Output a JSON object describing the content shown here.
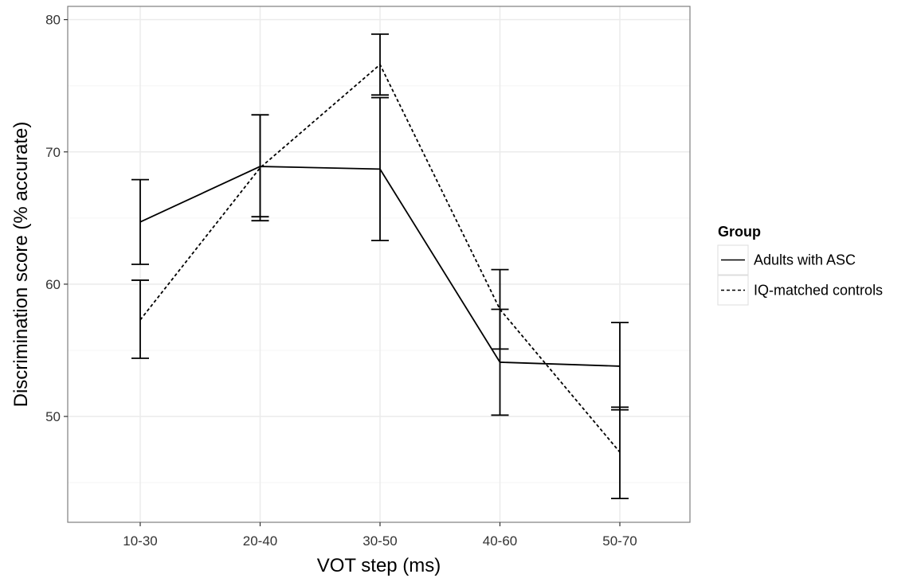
{
  "chart_data": {
    "type": "line",
    "xlabel": "VOT step (ms)",
    "ylabel": "Discrimination score (% accurate)",
    "categories": [
      "10-30",
      "20-40",
      "30-50",
      "40-60",
      "50-70"
    ],
    "ylim": [
      42,
      81
    ],
    "yticks": [
      50,
      60,
      70,
      80
    ],
    "grid": true,
    "error_bars": true,
    "legend": {
      "title": "Group",
      "position": "right"
    },
    "series": [
      {
        "name": "Adults with ASC",
        "linestyle": "solid",
        "values": [
          64.7,
          68.9,
          68.7,
          54.1,
          53.8
        ],
        "error_low": [
          61.5,
          65.1,
          63.3,
          50.1,
          50.5
        ],
        "error_high": [
          67.9,
          72.8,
          74.1,
          58.1,
          57.1
        ]
      },
      {
        "name": "IQ-matched controls",
        "linestyle": "dashed",
        "values": [
          57.3,
          68.8,
          76.6,
          58.1,
          47.3
        ],
        "error_low": [
          54.4,
          64.8,
          74.3,
          55.1,
          43.8
        ],
        "error_high": [
          60.3,
          72.8,
          78.9,
          61.1,
          50.7
        ]
      }
    ],
    "colors": {
      "line": "#000000",
      "grid": "#ebebeb",
      "panel_border": "#7f7f7f",
      "background": "#ffffff"
    }
  }
}
